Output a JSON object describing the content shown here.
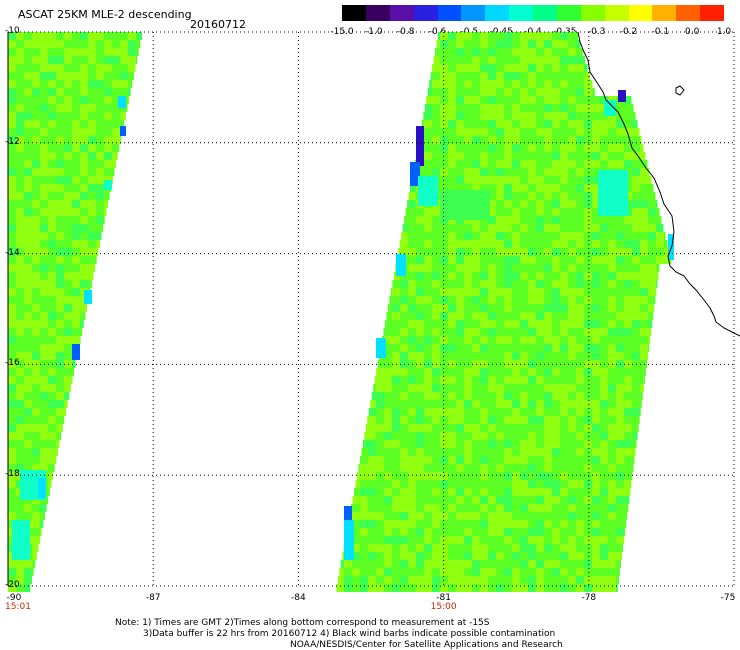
{
  "header": {
    "title": "ASCAT 25KM MLE-2 descending",
    "date": "20160712"
  },
  "colorbar": {
    "colors": [
      "#000000",
      "#3a0060",
      "#5a10a8",
      "#2a20e0",
      "#0050ff",
      "#0098ff",
      "#00d8ff",
      "#00ffd0",
      "#00ff88",
      "#30ff30",
      "#88ff00",
      "#c8ff00",
      "#ffff00",
      "#ffb000",
      "#ff6000",
      "#ff2000"
    ],
    "labels": [
      "-15.0",
      "-1.0",
      "-0.8",
      "-0.6",
      "-0.5",
      "-0.45",
      "-0.4",
      "-0.35",
      "-0.3",
      "-0.2",
      "-0.1",
      "0.0",
      "1.0"
    ]
  },
  "map": {
    "lon_range": [
      -90,
      -75
    ],
    "lat_range": [
      -20,
      -10
    ],
    "lat_ticks": [
      "-10",
      "-12",
      "-14",
      "-16",
      "-18",
      "-20"
    ],
    "lon_ticks": [
      "-90",
      "-87",
      "-84",
      "-81",
      "-78",
      "-75"
    ],
    "time_labels": [
      {
        "text": "15:01",
        "lon": -90
      },
      {
        "text": "15:00",
        "lon": -81
      }
    ],
    "colors": {
      "green": "#5cff24",
      "yellowgreen": "#90ff10",
      "lightgreen": "#3cff50",
      "aqua": "#10ffc8",
      "cyan": "#00e0ff",
      "blue": "#0060ff",
      "indigo": "#2a10c0",
      "coast": "#000000",
      "grid": "#000000"
    }
  },
  "notes": {
    "line1": "Note: 1) Times are GMT 2)Times along bottom correspond to measurement at -15S",
    "line2": "3)Data buffer is 22 hrs from 20160712 4) Black wind barbs indicate possible contamination",
    "line3": "NOAA/NESDIS/Center for Satellite Applications and Research"
  }
}
